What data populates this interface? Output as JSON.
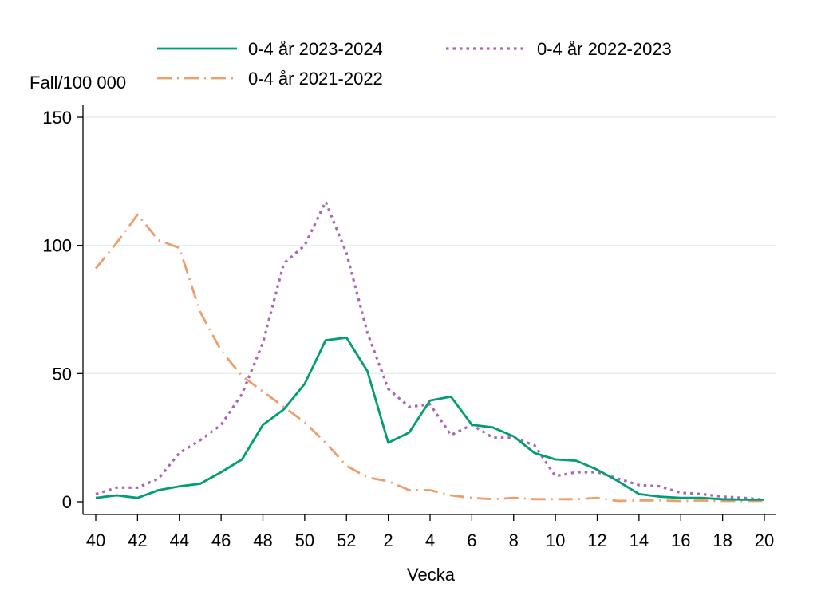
{
  "chart_data": {
    "type": "line",
    "ylabel": "Fall/100 000",
    "xlabel": "Vecka",
    "ylim": [
      0,
      150
    ],
    "yticks": [
      0,
      50,
      100,
      150
    ],
    "grid": "horizontal",
    "legend_placement": "top",
    "x": [
      "40",
      "41",
      "42",
      "43",
      "44",
      "45",
      "46",
      "47",
      "48",
      "49",
      "50",
      "51",
      "52",
      "1",
      "2",
      "3",
      "4",
      "5",
      "6",
      "7",
      "8",
      "9",
      "10",
      "11",
      "12",
      "13",
      "14",
      "15",
      "16",
      "17",
      "18",
      "19",
      "20"
    ],
    "xticks": [
      "40",
      "42",
      "44",
      "46",
      "48",
      "50",
      "52",
      "2",
      "4",
      "6",
      "8",
      "10",
      "12",
      "14",
      "16",
      "18",
      "20"
    ],
    "series": [
      {
        "name": "0-4 år 2023-2024",
        "color": "#009e73",
        "style": "solid",
        "values": [
          1.5,
          2.5,
          1.5,
          4.5,
          6,
          7,
          11.5,
          16.5,
          30,
          36,
          46,
          63,
          64,
          51,
          23,
          27,
          39.5,
          41,
          30,
          29,
          25.5,
          19,
          16.5,
          16,
          12.5,
          8,
          3,
          2,
          1.5,
          1.5,
          1,
          0.8,
          0.8
        ]
      },
      {
        "name": "0-4 år 2022-2023",
        "color": "#a867b5",
        "style": "dotted",
        "values": [
          3,
          5.5,
          5.5,
          9,
          19,
          24,
          30,
          42,
          62,
          93,
          100,
          117,
          97,
          66,
          44,
          37,
          38,
          26,
          30,
          25,
          25,
          22,
          10,
          11.5,
          11.5,
          9,
          6.5,
          6,
          3.5,
          3,
          2,
          1.5,
          0.8
        ]
      },
      {
        "name": "0-4 år 2021-2022",
        "color": "#ee9e6c",
        "style": "dashdot",
        "values": [
          91,
          101,
          112,
          102,
          99,
          74,
          59,
          49,
          43,
          37,
          31,
          23,
          14,
          9.5,
          8,
          4.5,
          4.5,
          2.5,
          1.5,
          1,
          1.5,
          1,
          1,
          1,
          1.5,
          0.3,
          0.5,
          0.5,
          0.3,
          0.5,
          0.3,
          0.3,
          0.3
        ]
      }
    ]
  }
}
